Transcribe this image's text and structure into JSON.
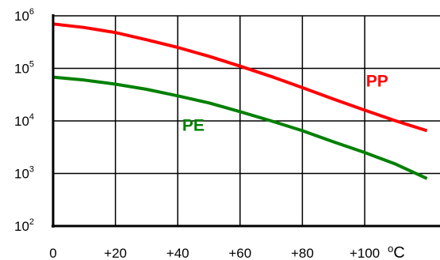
{
  "chart_data": {
    "type": "line",
    "title": "",
    "xlabel": "",
    "ylabel": "",
    "yscale": "log",
    "grid": true,
    "legend": "none",
    "x_unit": "°C",
    "xlim": [
      0,
      120
    ],
    "ylim": [
      100,
      1000000
    ],
    "x_ticks": [
      {
        "value": 0,
        "label": "0"
      },
      {
        "value": 20,
        "label": "+20"
      },
      {
        "value": 40,
        "label": "+40"
      },
      {
        "value": 60,
        "label": "+60"
      },
      {
        "value": 80,
        "label": "+80"
      },
      {
        "value": 100,
        "label": "+100"
      }
    ],
    "y_ticks": [
      {
        "value": 100,
        "base": "10",
        "exp": "2"
      },
      {
        "value": 1000,
        "base": "10",
        "exp": "3"
      },
      {
        "value": 10000,
        "base": "10",
        "exp": "4"
      },
      {
        "value": 100000,
        "base": "10",
        "exp": "5"
      },
      {
        "value": 1000000,
        "base": "10",
        "exp": "6"
      }
    ],
    "series": [
      {
        "name": "PP",
        "color": "#ff0000",
        "label_at": {
          "x": 104,
          "y": 45000
        },
        "points": [
          {
            "x": 0,
            "y": 700000
          },
          {
            "x": 10,
            "y": 600000
          },
          {
            "x": 20,
            "y": 480000
          },
          {
            "x": 30,
            "y": 350000
          },
          {
            "x": 40,
            "y": 250000
          },
          {
            "x": 50,
            "y": 170000
          },
          {
            "x": 60,
            "y": 110000
          },
          {
            "x": 70,
            "y": 70000
          },
          {
            "x": 80,
            "y": 43000
          },
          {
            "x": 90,
            "y": 26000
          },
          {
            "x": 100,
            "y": 16000
          },
          {
            "x": 110,
            "y": 10000
          },
          {
            "x": 120,
            "y": 6500
          }
        ]
      },
      {
        "name": "PE",
        "color": "#008000",
        "label_at": {
          "x": 45,
          "y": 6500
        },
        "points": [
          {
            "x": 0,
            "y": 68000
          },
          {
            "x": 10,
            "y": 60000
          },
          {
            "x": 20,
            "y": 50000
          },
          {
            "x": 30,
            "y": 40000
          },
          {
            "x": 40,
            "y": 30000
          },
          {
            "x": 50,
            "y": 22000
          },
          {
            "x": 60,
            "y": 15000
          },
          {
            "x": 70,
            "y": 10000
          },
          {
            "x": 80,
            "y": 6500
          },
          {
            "x": 90,
            "y": 4000
          },
          {
            "x": 100,
            "y": 2500
          },
          {
            "x": 110,
            "y": 1500
          },
          {
            "x": 120,
            "y": 800
          }
        ]
      }
    ]
  }
}
